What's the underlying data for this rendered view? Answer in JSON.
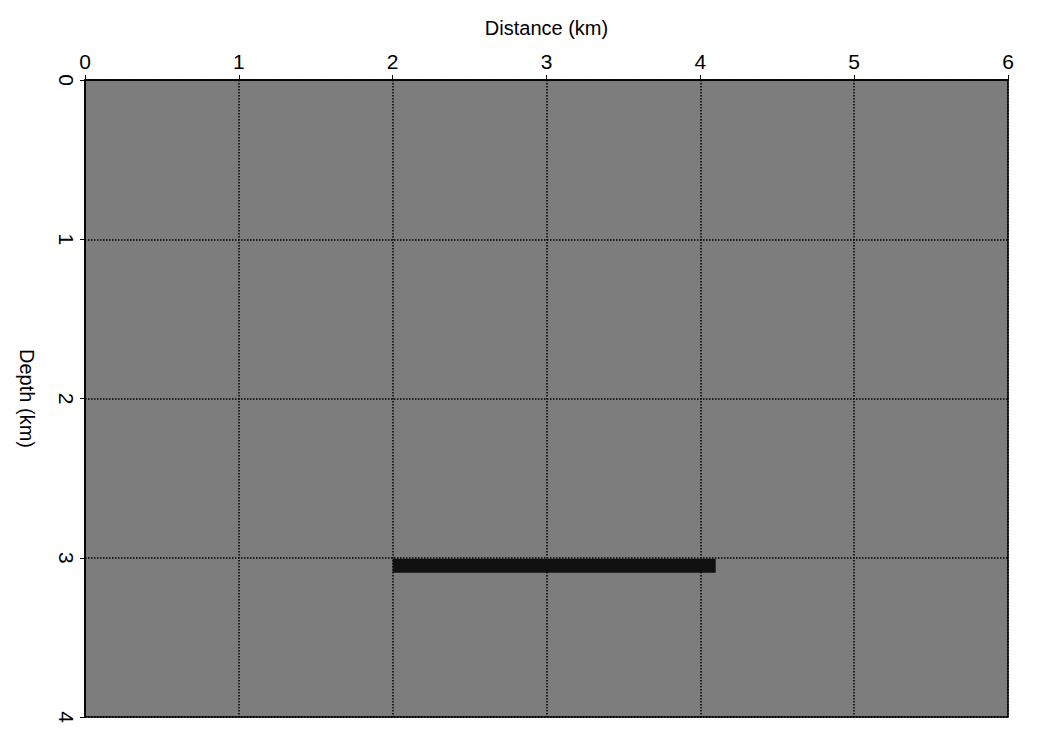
{
  "chart_data": {
    "type": "line",
    "xlabel": "Distance (km)",
    "ylabel": "Depth (km)",
    "xlim": [
      0,
      6
    ],
    "xticks": [
      0,
      1,
      2,
      3,
      4,
      5,
      6
    ],
    "ylim": [
      0,
      4
    ],
    "yticks": [
      0,
      1,
      2,
      3,
      4
    ],
    "grid": true,
    "series": [
      {
        "x": [
          2.0,
          4.1
        ],
        "values": [
          3.05,
          3.05
        ],
        "color": "#111111"
      }
    ]
  }
}
